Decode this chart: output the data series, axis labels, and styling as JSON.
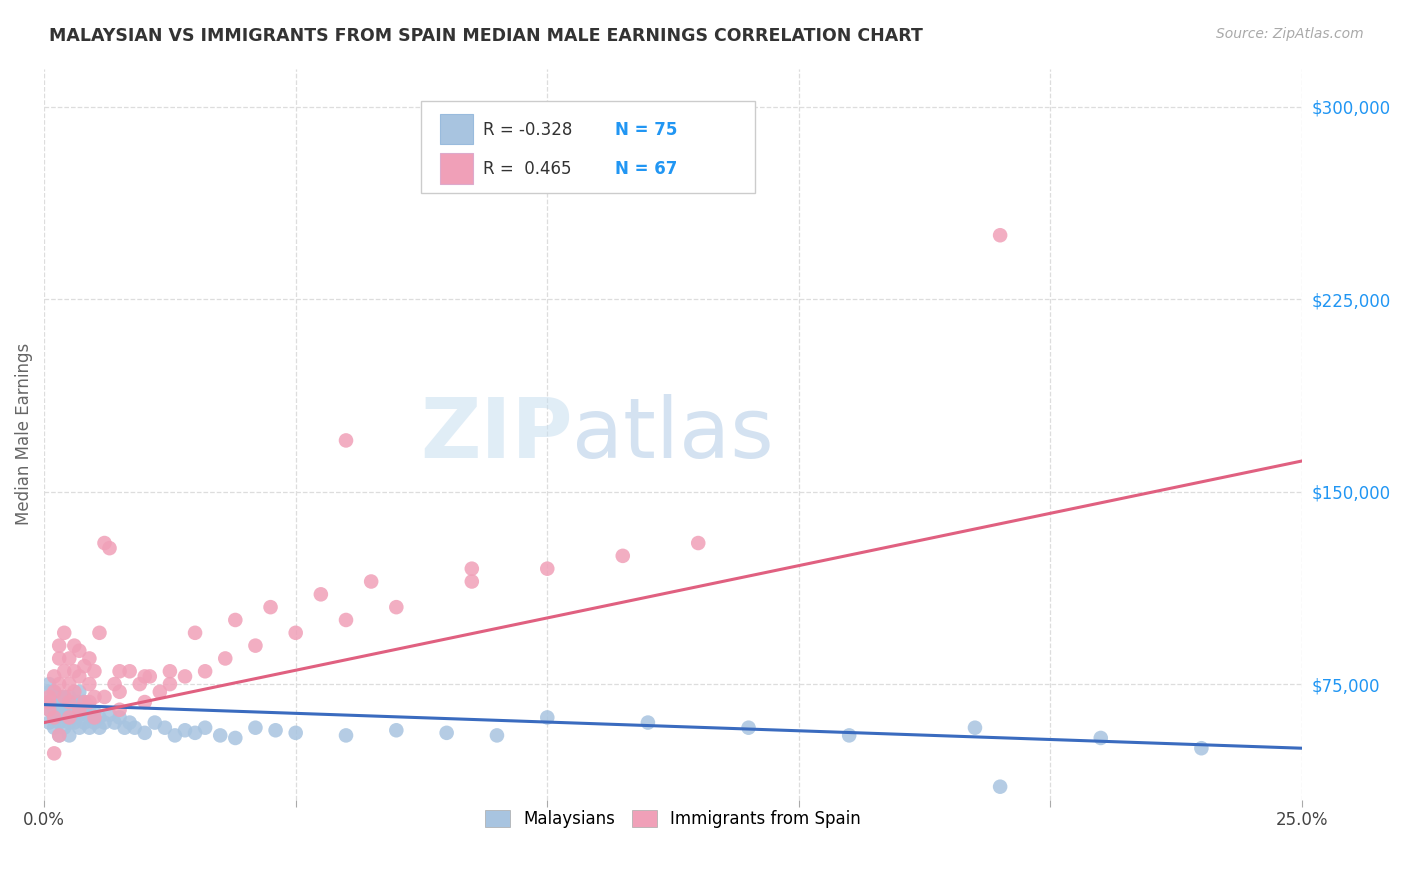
{
  "title": "MALAYSIAN VS IMMIGRANTS FROM SPAIN MEDIAN MALE EARNINGS CORRELATION CHART",
  "source": "Source: ZipAtlas.com",
  "ylabel": "Median Male Earnings",
  "xlim": [
    0.0,
    0.25
  ],
  "ylim": [
    30000,
    315000
  ],
  "yticks": [
    75000,
    150000,
    225000,
    300000
  ],
  "ytick_labels": [
    "$75,000",
    "$150,000",
    "$225,000",
    "$300,000"
  ],
  "xticks": [
    0.0,
    0.05,
    0.1,
    0.15,
    0.2,
    0.25
  ],
  "xtick_labels": [
    "0.0%",
    "",
    "",
    "",
    "",
    "25.0%"
  ],
  "legend_r1": "R = -0.328",
  "legend_n1": "N = 75",
  "legend_r2": "R =  0.465",
  "legend_n2": "N = 67",
  "color_blue": "#a8c4e0",
  "color_pink": "#f0a0b8",
  "color_blue_line": "#3a6bbf",
  "color_pink_line": "#e06080",
  "color_axis_label": "#666666",
  "color_ytick": "#2196F3",
  "color_title": "#333333",
  "watermark_color": "#ddeeff",
  "background_color": "#ffffff",
  "grid_color": "#dddddd",
  "malaysian_x": [
    0.001,
    0.001,
    0.001,
    0.001,
    0.001,
    0.002,
    0.002,
    0.002,
    0.002,
    0.002,
    0.002,
    0.003,
    0.003,
    0.003,
    0.003,
    0.003,
    0.004,
    0.004,
    0.004,
    0.004,
    0.004,
    0.005,
    0.005,
    0.005,
    0.005,
    0.005,
    0.006,
    0.006,
    0.006,
    0.006,
    0.007,
    0.007,
    0.007,
    0.007,
    0.008,
    0.008,
    0.008,
    0.009,
    0.009,
    0.009,
    0.01,
    0.01,
    0.011,
    0.011,
    0.012,
    0.013,
    0.014,
    0.015,
    0.016,
    0.017,
    0.018,
    0.02,
    0.022,
    0.024,
    0.026,
    0.028,
    0.03,
    0.032,
    0.035,
    0.038,
    0.042,
    0.046,
    0.05,
    0.06,
    0.07,
    0.08,
    0.09,
    0.1,
    0.12,
    0.14,
    0.16,
    0.185,
    0.21,
    0.23,
    0.19
  ],
  "malaysian_y": [
    68000,
    65000,
    72000,
    60000,
    75000,
    62000,
    68000,
    70000,
    65000,
    58000,
    72000,
    60000,
    65000,
    68000,
    55000,
    70000,
    62000,
    66000,
    70000,
    58000,
    64000,
    60000,
    65000,
    68000,
    55000,
    70000,
    62000,
    66000,
    60000,
    68000,
    58000,
    63000,
    68000,
    72000,
    60000,
    65000,
    68000,
    62000,
    58000,
    66000,
    60000,
    64000,
    62000,
    58000,
    60000,
    63000,
    60000,
    62000,
    58000,
    60000,
    58000,
    56000,
    60000,
    58000,
    55000,
    57000,
    56000,
    58000,
    55000,
    54000,
    58000,
    57000,
    56000,
    55000,
    57000,
    56000,
    55000,
    62000,
    60000,
    58000,
    55000,
    58000,
    54000,
    50000,
    35000
  ],
  "spain_x": [
    0.001,
    0.001,
    0.001,
    0.002,
    0.002,
    0.002,
    0.003,
    0.003,
    0.003,
    0.004,
    0.004,
    0.004,
    0.005,
    0.005,
    0.005,
    0.006,
    0.006,
    0.006,
    0.007,
    0.007,
    0.008,
    0.008,
    0.009,
    0.009,
    0.01,
    0.01,
    0.011,
    0.012,
    0.013,
    0.014,
    0.015,
    0.017,
    0.019,
    0.021,
    0.023,
    0.025,
    0.028,
    0.032,
    0.036,
    0.042,
    0.05,
    0.06,
    0.07,
    0.085,
    0.1,
    0.115,
    0.13,
    0.085,
    0.065,
    0.055,
    0.045,
    0.038,
    0.03,
    0.025,
    0.02,
    0.015,
    0.012,
    0.009,
    0.007,
    0.005,
    0.003,
    0.002,
    0.01,
    0.015,
    0.02,
    0.19,
    0.06
  ],
  "spain_y": [
    65000,
    70000,
    68000,
    72000,
    62000,
    78000,
    85000,
    75000,
    90000,
    80000,
    95000,
    70000,
    75000,
    85000,
    68000,
    80000,
    90000,
    72000,
    78000,
    88000,
    82000,
    68000,
    75000,
    85000,
    80000,
    70000,
    95000,
    130000,
    128000,
    75000,
    80000,
    80000,
    75000,
    78000,
    72000,
    75000,
    78000,
    80000,
    85000,
    90000,
    95000,
    100000,
    105000,
    115000,
    120000,
    125000,
    130000,
    120000,
    115000,
    110000,
    105000,
    100000,
    95000,
    80000,
    78000,
    72000,
    70000,
    68000,
    65000,
    62000,
    55000,
    48000,
    62000,
    65000,
    68000,
    250000,
    170000
  ],
  "blue_line_x0": 0.0,
  "blue_line_y0": 67000,
  "blue_line_x1": 0.25,
  "blue_line_y1": 50000,
  "pink_line_x0": 0.0,
  "pink_line_y0": 60000,
  "pink_line_x1": 0.25,
  "pink_line_y1": 162000
}
